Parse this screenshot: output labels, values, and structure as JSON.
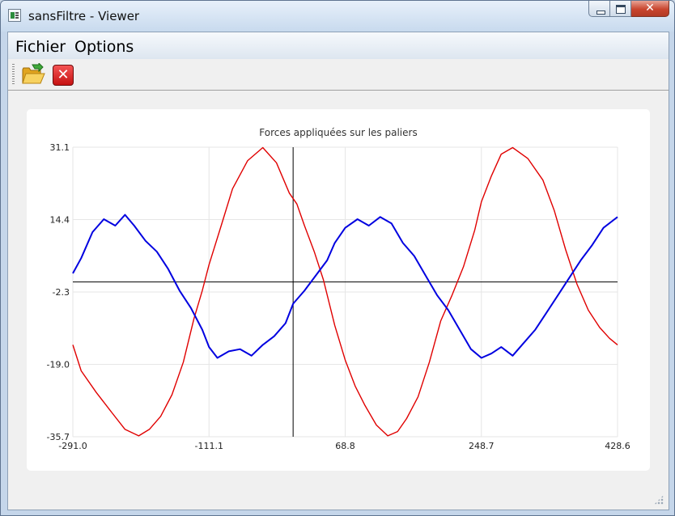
{
  "window": {
    "title": "sansFiltre - Viewer"
  },
  "menu": {
    "items": [
      "Fichier",
      "Options"
    ]
  },
  "toolbar": {
    "open_icon": "folder-open-icon",
    "close_icon": "close-icon"
  },
  "colors": {
    "series_red": "#e00000",
    "series_blue": "#0000e0",
    "axis": "#000000",
    "grid": "#e6e6e6"
  },
  "chart_data": {
    "type": "line",
    "title": "Forces appliquées sur les paliers",
    "xlabel": "",
    "ylabel": "",
    "xlim": [
      -291.0,
      428.6
    ],
    "ylim": [
      -35.7,
      31.1
    ],
    "x_ticks": [
      "-291.0",
      "-111.1",
      "68.8",
      "248.7",
      "428.6"
    ],
    "y_ticks": [
      "31.1",
      "14.4",
      "-2.3",
      "-19.0",
      "-35.7"
    ],
    "grid": true,
    "series": [
      {
        "color": "#e00000",
        "x": [
          -291.0,
          -280,
          -260,
          -240,
          -222,
          -204,
          -190,
          -175,
          -160,
          -145,
          -131,
          -120,
          -111.1,
          -95,
          -80,
          -60,
          -40,
          -22,
          -5,
          5,
          15,
          28,
          40,
          55,
          68.8,
          82,
          95,
          110,
          125,
          138,
          150,
          165,
          180,
          195,
          210,
          225,
          240,
          248.7,
          262,
          275,
          290,
          310,
          330,
          345,
          360,
          375,
          390,
          405,
          418,
          428.6
        ],
        "y": [
          -14.5,
          -20.5,
          -25.5,
          -30.0,
          -34.0,
          -35.5,
          -34.0,
          -31.0,
          -26.0,
          -18.5,
          -8.5,
          -2.0,
          4.0,
          13.0,
          21.5,
          28.0,
          31.0,
          27.5,
          20.5,
          18.0,
          13.0,
          7.0,
          0.5,
          -10.0,
          -18.0,
          -24.0,
          -28.5,
          -33.0,
          -35.5,
          -34.5,
          -31.5,
          -26.5,
          -18.5,
          -9.0,
          -3.0,
          3.5,
          12.0,
          18.5,
          24.5,
          29.5,
          31.0,
          28.5,
          23.5,
          16.5,
          7.5,
          -0.5,
          -6.5,
          -10.5,
          -13.0,
          -14.5
        ]
      },
      {
        "color": "#0000e0",
        "x": [
          -291.0,
          -280,
          -265,
          -250,
          -235,
          -222,
          -210,
          -195,
          -180,
          -165,
          -150,
          -135,
          -120,
          -111.1,
          -100,
          -85,
          -70,
          -55,
          -40,
          -25,
          -10,
          0,
          15,
          30,
          45,
          55,
          68.8,
          85,
          100,
          115,
          130,
          145,
          160,
          175,
          190,
          205,
          220,
          235,
          248.7,
          262,
          275,
          290,
          305,
          320,
          335,
          350,
          365,
          380,
          395,
          410,
          428.6
        ],
        "y": [
          2.0,
          5.5,
          11.5,
          14.5,
          13.0,
          15.5,
          13.0,
          9.5,
          7.0,
          3.0,
          -2.0,
          -6.0,
          -11.0,
          -15.0,
          -17.5,
          -16.0,
          -15.5,
          -17.0,
          -14.5,
          -12.5,
          -9.5,
          -5.0,
          -2.0,
          1.5,
          5.0,
          9.0,
          12.5,
          14.5,
          13.0,
          15.0,
          13.5,
          9.0,
          6.0,
          1.5,
          -3.0,
          -6.5,
          -11.0,
          -15.5,
          -17.5,
          -16.5,
          -15.0,
          -17.0,
          -14.0,
          -11.0,
          -7.0,
          -3.0,
          1.0,
          5.0,
          8.5,
          12.5,
          15.0
        ]
      }
    ]
  }
}
